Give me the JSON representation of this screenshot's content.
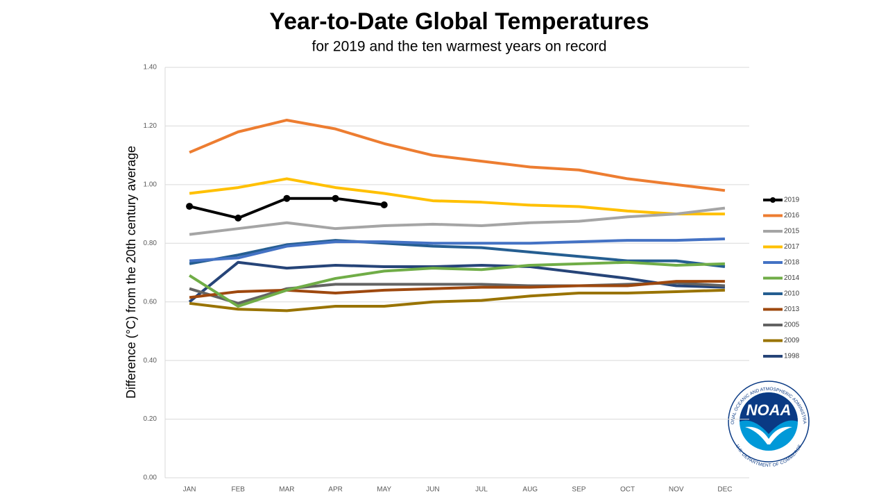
{
  "chart_data": {
    "type": "line",
    "title": "Year-to-Date Global Temperatures",
    "subtitle": "for 2019 and the ten warmest years on record",
    "y_label": "Difference (°C) from the 20th century average",
    "categories": [
      "JAN",
      "FEB",
      "MAR",
      "APR",
      "MAY",
      "JUN",
      "JUL",
      "AUG",
      "SEP",
      "OCT",
      "NOV",
      "DEC"
    ],
    "ylim": [
      0,
      1.4
    ],
    "yticks": [
      {
        "value": 0,
        "label": "0.00"
      },
      {
        "value": 0.2,
        "label": "0.20"
      },
      {
        "value": 0.4,
        "label": "0.40"
      },
      {
        "value": 0.6,
        "label": "0.60"
      },
      {
        "value": 0.8,
        "label": "0.80"
      },
      {
        "value": 1.0,
        "label": "1.00"
      },
      {
        "value": 1.2,
        "label": "1.20"
      },
      {
        "value": 1.4,
        "label": "1.40"
      }
    ],
    "grid": true,
    "legend": "right",
    "series": [
      {
        "name": "2019",
        "color": "#000000",
        "markers": true,
        "values": [
          0.926,
          0.886,
          0.953,
          0.953,
          0.931,
          null,
          null,
          null,
          null,
          null,
          null,
          null
        ]
      },
      {
        "name": "2016",
        "color": "#ed7d31",
        "values": [
          1.11,
          1.18,
          1.22,
          1.19,
          1.14,
          1.1,
          1.08,
          1.06,
          1.05,
          1.02,
          1.0,
          0.98
        ]
      },
      {
        "name": "2015",
        "color": "#a5a5a5",
        "values": [
          0.83,
          0.85,
          0.87,
          0.85,
          0.86,
          0.865,
          0.86,
          0.87,
          0.875,
          0.89,
          0.9,
          0.92
        ]
      },
      {
        "name": "2017",
        "color": "#ffc000",
        "values": [
          0.97,
          0.99,
          1.02,
          0.99,
          0.97,
          0.945,
          0.94,
          0.93,
          0.925,
          0.91,
          0.9,
          0.9
        ]
      },
      {
        "name": "2018",
        "color": "#4472c4",
        "values": [
          0.74,
          0.75,
          0.79,
          0.805,
          0.805,
          0.8,
          0.8,
          0.8,
          0.805,
          0.81,
          0.81,
          0.815
        ]
      },
      {
        "name": "2014",
        "color": "#70ad47",
        "values": [
          0.69,
          0.585,
          0.64,
          0.68,
          0.705,
          0.715,
          0.71,
          0.725,
          0.73,
          0.735,
          0.725,
          0.73
        ]
      },
      {
        "name": "2010",
        "color": "#255e91",
        "values": [
          0.73,
          0.76,
          0.795,
          0.81,
          0.8,
          0.79,
          0.785,
          0.77,
          0.755,
          0.74,
          0.74,
          0.72
        ]
      },
      {
        "name": "2013",
        "color": "#9e480e",
        "values": [
          0.615,
          0.635,
          0.64,
          0.63,
          0.64,
          0.645,
          0.65,
          0.65,
          0.655,
          0.655,
          0.67,
          0.67
        ]
      },
      {
        "name": "2005",
        "color": "#636363",
        "values": [
          0.645,
          0.595,
          0.645,
          0.66,
          0.66,
          0.66,
          0.66,
          0.655,
          0.655,
          0.66,
          0.665,
          0.655
        ]
      },
      {
        "name": "2009",
        "color": "#997300",
        "values": [
          0.595,
          0.575,
          0.57,
          0.585,
          0.585,
          0.6,
          0.605,
          0.62,
          0.63,
          0.63,
          0.635,
          0.64
        ]
      },
      {
        "name": "1998",
        "color": "#264478",
        "values": [
          0.6,
          0.735,
          0.715,
          0.725,
          0.72,
          0.72,
          0.725,
          0.72,
          0.7,
          0.68,
          0.655,
          0.65
        ]
      }
    ]
  },
  "logo": {
    "text": "NOAA",
    "top": "NATIONAL OCEANIC AND ATMOSPHERIC ADMINISTRATION",
    "bottom": "U.S. DEPARTMENT OF COMMERCE"
  }
}
